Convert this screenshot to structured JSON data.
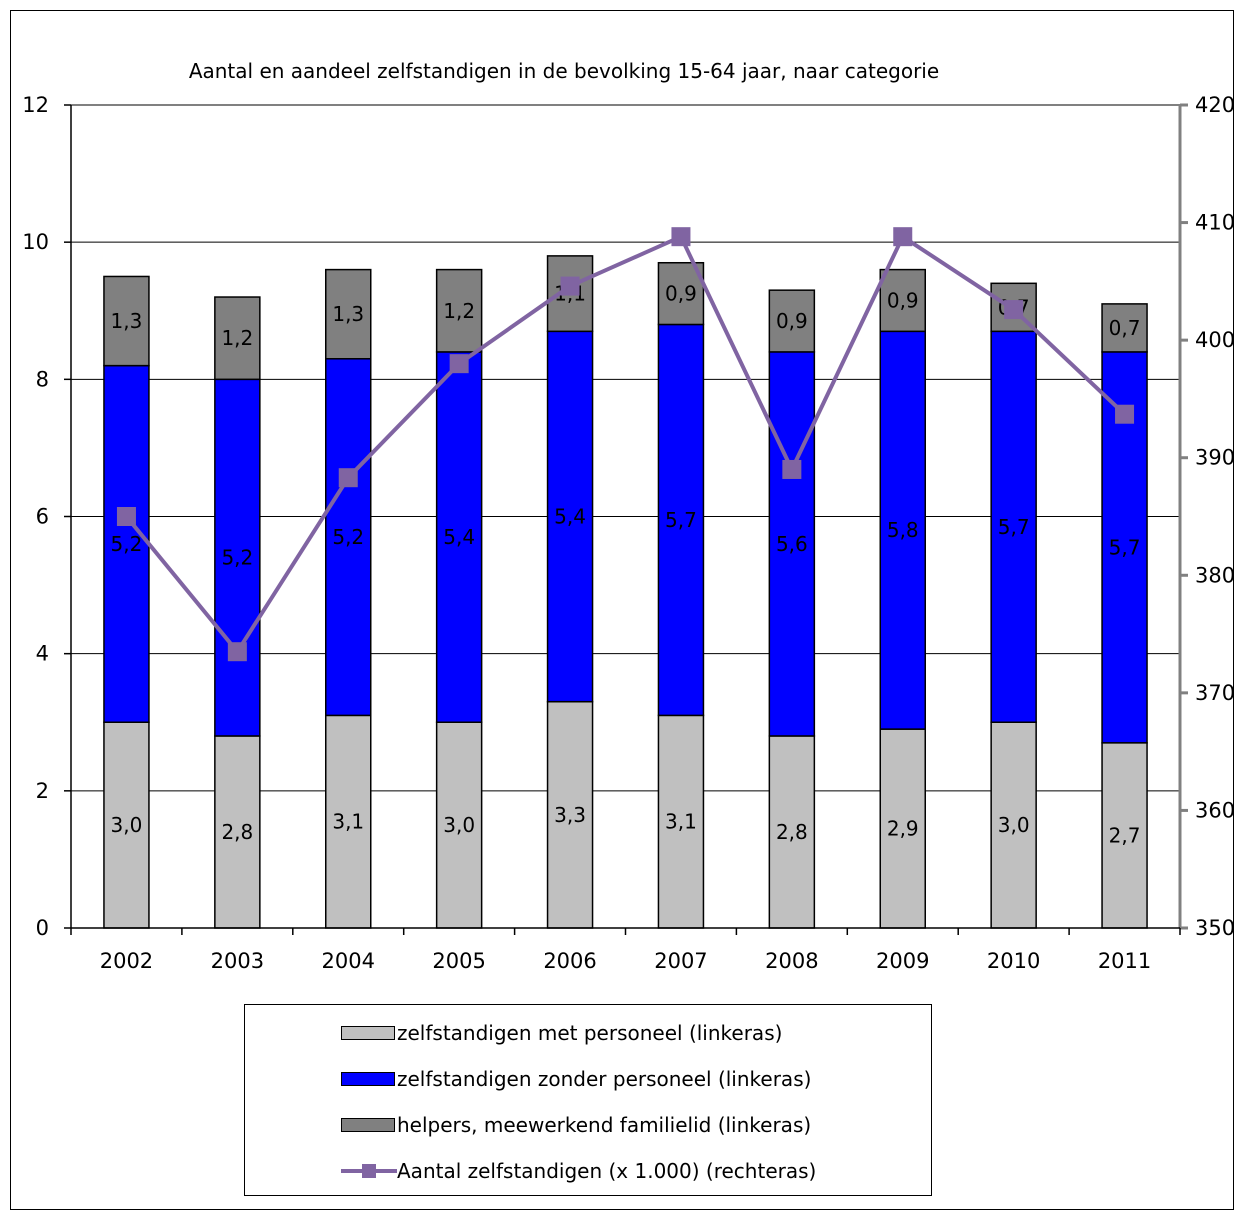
{
  "colors": {
    "met_personeel": "#c0c0c0",
    "zonder_personeel": "#0000ff",
    "helpers": "#808080",
    "line": "#8064a2",
    "axis_right": "#808080",
    "gridline": "#000000"
  },
  "chart_data": {
    "type": "bar",
    "stacked": true,
    "title": "Aantal en aandeel zelfstandigen in de bevolking 15-64 jaar, naar categorie",
    "categories": [
      "2002",
      "2003",
      "2004",
      "2005",
      "2006",
      "2007",
      "2008",
      "2009",
      "2010",
      "2011"
    ],
    "y_left": {
      "ylim": [
        0,
        12
      ],
      "ticks": [
        "0",
        "2",
        "4",
        "6",
        "8",
        "10",
        "12"
      ],
      "tick_values": [
        0,
        2,
        4,
        6,
        8,
        10,
        12
      ],
      "grid": true
    },
    "y_right": {
      "ylim": [
        350,
        420
      ],
      "ticks": [
        "350",
        "360",
        "370",
        "380",
        "390",
        "400",
        "410",
        "420"
      ],
      "tick_values": [
        350,
        360,
        370,
        380,
        390,
        400,
        410,
        420
      ]
    },
    "series": [
      {
        "name": "zelfstandigen met personeel (linkeras)",
        "axis": "left",
        "values": [
          3.0,
          2.8,
          3.1,
          3.0,
          3.3,
          3.1,
          2.8,
          2.9,
          3.0,
          2.7
        ],
        "labels": [
          "3,0",
          "2,8",
          "3,1",
          "3,0",
          "3,3",
          "3,1",
          "2,8",
          "2,9",
          "3,0",
          "2,7"
        ],
        "color": "#c0c0c0"
      },
      {
        "name": "zelfstandigen zonder personeel (linkeras)",
        "axis": "left",
        "values": [
          5.2,
          5.2,
          5.2,
          5.4,
          5.4,
          5.7,
          5.6,
          5.8,
          5.7,
          5.7
        ],
        "labels": [
          "5,2",
          "5,2",
          "5,2",
          "5,4",
          "5,4",
          "5,7",
          "5,6",
          "5,8",
          "5,7",
          "5,7"
        ],
        "color": "#0000ff"
      },
      {
        "name": "helpers, meewerkend familielid (linkeras)",
        "axis": "left",
        "values": [
          1.3,
          1.2,
          1.3,
          1.2,
          1.1,
          0.9,
          0.9,
          0.9,
          0.7,
          0.7
        ],
        "labels": [
          "1,3",
          "1,2",
          "1,3",
          "1,2",
          "1,1",
          "0,9",
          "0,9",
          "0,9",
          "0,7",
          "0,7"
        ],
        "color": "#808080"
      }
    ],
    "line_series": {
      "name": "Aantal zelfstandigen (x 1.000) (rechteras)",
      "axis": "right",
      "type": "line",
      "marker": "square",
      "values": [
        385,
        373.5,
        388.3,
        398,
        404.6,
        408.8,
        389,
        408.8,
        402.6,
        393.7
      ],
      "color": "#8064a2"
    },
    "legend": {
      "placement": "bottom",
      "entries": [
        "zelfstandigen met personeel (linkeras)",
        "zelfstandigen zonder personeel (linkeras)",
        "helpers, meewerkend familielid (linkeras)",
        "Aantal zelfstandigen (x 1.000) (rechteras)"
      ]
    }
  }
}
